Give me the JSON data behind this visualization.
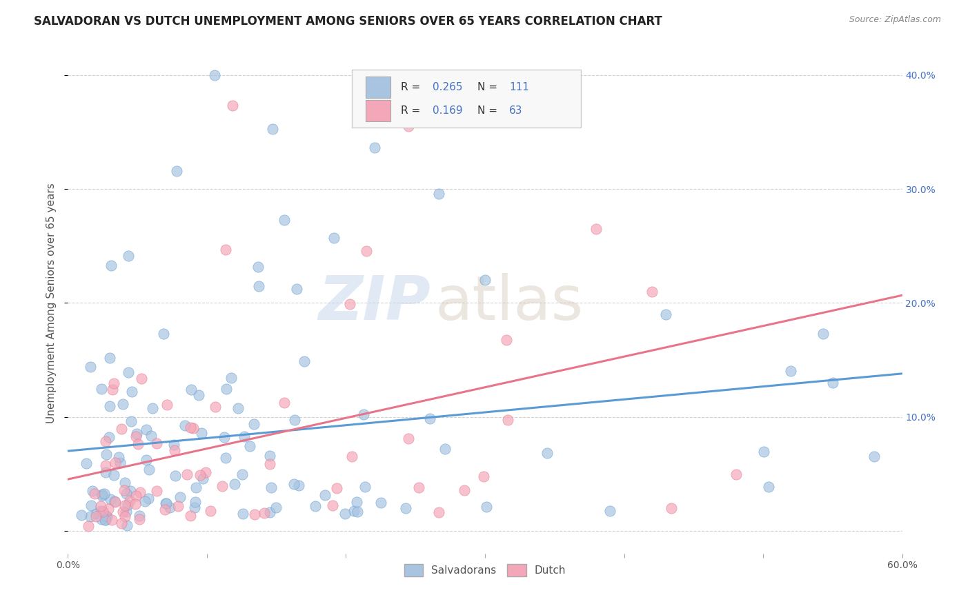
{
  "title": "SALVADORAN VS DUTCH UNEMPLOYMENT AMONG SENIORS OVER 65 YEARS CORRELATION CHART",
  "source": "Source: ZipAtlas.com",
  "ylabel": "Unemployment Among Seniors over 65 years",
  "xlim": [
    0.0,
    0.6
  ],
  "ylim": [
    -0.02,
    0.42
  ],
  "x_ticks": [
    0.0,
    0.1,
    0.2,
    0.3,
    0.4,
    0.5,
    0.6
  ],
  "x_tick_labels": [
    "0.0%",
    "",
    "",
    "",
    "",
    "",
    "60.0%"
  ],
  "y_ticks": [
    0.0,
    0.1,
    0.2,
    0.3,
    0.4
  ],
  "y_tick_labels": [
    "",
    "10.0%",
    "20.0%",
    "30.0%",
    "40.0%"
  ],
  "salvadoran_R": 0.265,
  "salvadoran_N": 111,
  "dutch_R": 0.169,
  "dutch_N": 63,
  "salvadoran_color": "#a8c4e0",
  "dutch_color": "#f4a7b9",
  "line_salvadoran": "#5b9bd5",
  "line_dutch": "#e8748a",
  "background_color": "#ffffff",
  "grid_color": "#cccccc",
  "title_fontsize": 12,
  "label_fontsize": 11,
  "tick_fontsize": 10,
  "watermark_zip": "ZIP",
  "watermark_atlas": "atlas",
  "legend_salvadoran": "Salvadorans",
  "legend_dutch": "Dutch"
}
